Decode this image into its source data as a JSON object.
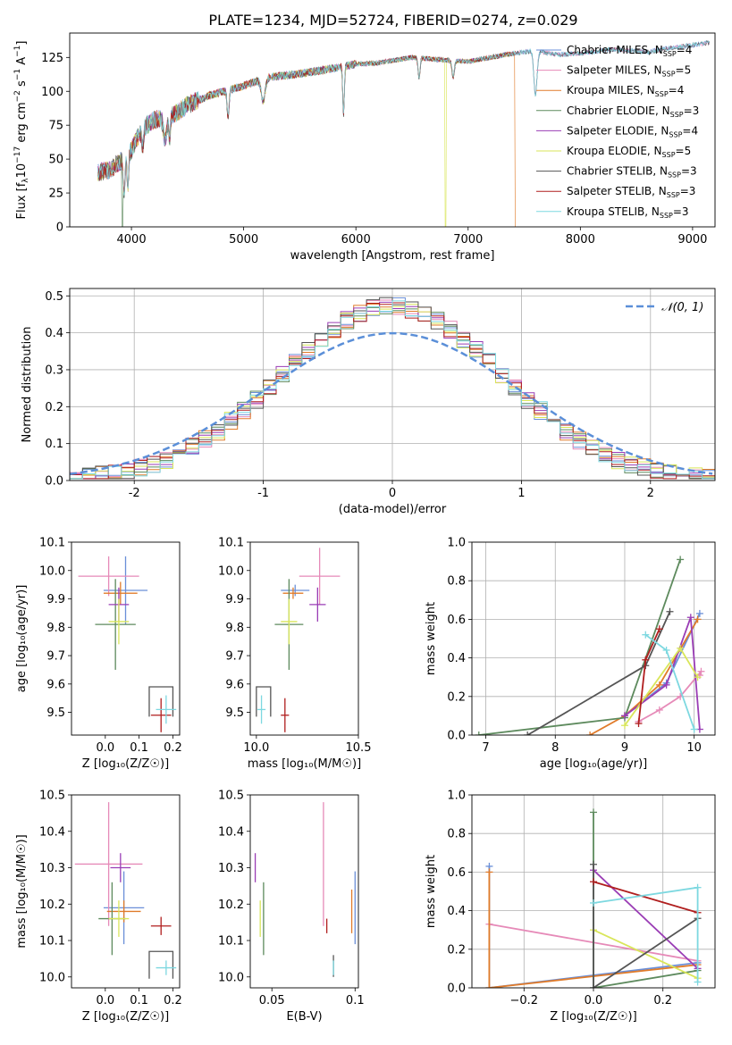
{
  "figure_title": "PLATE=1234, MJD=52724, FIBERID=0274, z=0.029",
  "colors": {
    "blue": "#6a8fd8",
    "pink": "#e68ab8",
    "orange": "#e07b2a",
    "green": "#5d8a5d",
    "purple": "#9a3db5",
    "yellow": "#d9e65a",
    "gray": "#555555",
    "red": "#b01e1e",
    "cyan": "#7dd8e0"
  },
  "legend_series": [
    {
      "name": "Chabrier MILES",
      "n": "4",
      "color": "blue"
    },
    {
      "name": "Salpeter MILES",
      "n": "5",
      "color": "pink"
    },
    {
      "name": "Kroupa MILES",
      "n": "4",
      "color": "orange"
    },
    {
      "name": "Chabrier ELODIE",
      "n": "3",
      "color": "green"
    },
    {
      "name": "Salpeter ELODIE",
      "n": "4",
      "color": "purple"
    },
    {
      "name": "Kroupa ELODIE",
      "n": "5",
      "color": "yellow"
    },
    {
      "name": "Chabrier STELIB",
      "n": "3",
      "color": "gray"
    },
    {
      "name": "Salpeter STELIB",
      "n": "3",
      "color": "red"
    },
    {
      "name": "Kroupa STELIB",
      "n": "3",
      "color": "cyan"
    }
  ],
  "chart_data": [
    {
      "id": "spectrum",
      "type": "line",
      "xlabel": "wavelength [Angstrom, rest frame]",
      "ylabel": "Flux [f_λ10^-17 erg cm^-2 s^-1 A^-1]",
      "xlim": [
        3450,
        9200
      ],
      "ylim": [
        0,
        143
      ],
      "xticks": [
        4000,
        5000,
        6000,
        7000,
        8000,
        9000
      ],
      "yticks": [
        0,
        25,
        50,
        75,
        100,
        125
      ],
      "grid": false,
      "legend": "top-right",
      "continuum": {
        "x": [
          3700,
          3800,
          3900,
          4000,
          4100,
          4200,
          4300,
          4400,
          4500,
          4700,
          5000,
          5200,
          5500,
          5800,
          6000,
          6200,
          6500,
          6800,
          7000,
          7200,
          7400,
          7600,
          7800,
          8000,
          8300,
          8600,
          8800,
          9000,
          9150
        ],
        "y": [
          40,
          42,
          48,
          57,
          73,
          79,
          80,
          84,
          90,
          97,
          104,
          110,
          113,
          117,
          120,
          121,
          125,
          123,
          122,
          125,
          128,
          130,
          127,
          128,
          131,
          129,
          132,
          134,
          136
        ]
      },
      "dropouts": [
        {
          "series": "green",
          "x": 3920
        },
        {
          "series": "yellow",
          "x": 6800
        },
        {
          "series": "orange",
          "x": 7420
        }
      ]
    },
    {
      "id": "residuals",
      "type": "histogram",
      "xlabel": "(data-model)/error",
      "ylabel": "Normed distribution",
      "xlim": [
        -2.5,
        2.5
      ],
      "ylim": [
        0,
        0.52
      ],
      "xticks": [
        -2,
        -1,
        0,
        1,
        2
      ],
      "yticks": [
        0.0,
        0.1,
        0.2,
        0.3,
        0.4,
        0.5
      ],
      "grid": true,
      "legend": "top-right",
      "reference": {
        "label": "𝒩(0, 1)",
        "mean": 0,
        "sigma": 1,
        "color": "#5b8fd8"
      },
      "bin_width": 0.1
    },
    {
      "id": "age_vs_Z",
      "type": "scatter",
      "xlabel": "Z [log₁₀(Z/Z☉)]",
      "ylabel": "age  [log₁₀(age/yr)]",
      "xlim": [
        -0.1,
        0.22
      ],
      "ylim": [
        9.42,
        10.1
      ],
      "xticks": [
        0.0,
        0.1,
        0.2
      ],
      "yticks": [
        9.5,
        9.6,
        9.7,
        9.8,
        9.9,
        10.0,
        10.1
      ],
      "grid": false,
      "points": [
        {
          "series": "blue",
          "x": 0.06,
          "y": 9.93,
          "xerr": 0.065,
          "yerr": 0.12
        },
        {
          "series": "pink",
          "x": 0.01,
          "y": 9.98,
          "xerr": 0.09,
          "yerr": 0.07
        },
        {
          "series": "orange",
          "x": 0.045,
          "y": 9.92,
          "xerr": 0.05,
          "yerr": 0.04
        },
        {
          "series": "green",
          "x": 0.03,
          "y": 9.81,
          "xerr": 0.06,
          "yerr": 0.16
        },
        {
          "series": "purple",
          "x": 0.04,
          "y": 9.88,
          "xerr": 0.03,
          "yerr": 0.06
        },
        {
          "series": "yellow",
          "x": 0.04,
          "y": 9.82,
          "xerr": 0.03,
          "yerr": 0.08
        },
        {
          "series": "gray",
          "x": 0.13,
          "y": 9.59,
          "xerr": 0.0,
          "yerr": 0.0,
          "box": {
            "x2": 0.2,
            "y2": 9.485
          }
        },
        {
          "series": "red",
          "x": 0.165,
          "y": 9.49,
          "xerr": 0.03,
          "yerr": 0.06
        },
        {
          "series": "cyan",
          "x": 0.18,
          "y": 9.51,
          "xerr": 0.03,
          "yerr": 0.05
        }
      ]
    },
    {
      "id": "age_vs_mass",
      "type": "scatter",
      "xlabel": "mass [log₁₀(M/M☉)]",
      "ylabel": "",
      "xlim": [
        9.97,
        10.5
      ],
      "ylim": [
        9.42,
        10.1
      ],
      "xticks": [
        10.0,
        10.5
      ],
      "xtick_labels": [
        "10.0",
        "10.5"
      ],
      "yticks": [
        9.5,
        9.6,
        9.7,
        9.8,
        9.9,
        10.0,
        10.1
      ],
      "grid": false,
      "points": [
        {
          "series": "blue",
          "x": 10.19,
          "y": 9.93,
          "xerr": 0.07,
          "yerr": 0.02
        },
        {
          "series": "pink",
          "x": 10.31,
          "y": 9.98,
          "xerr": 0.1,
          "yerr": 0.1
        },
        {
          "series": "orange",
          "x": 10.18,
          "y": 9.92,
          "xerr": 0.05,
          "yerr": 0.02
        },
        {
          "series": "green",
          "x": 10.16,
          "y": 9.81,
          "xerr": 0.07,
          "yerr": 0.16
        },
        {
          "series": "purple",
          "x": 10.3,
          "y": 9.88,
          "xerr": 0.04,
          "yerr": 0.06
        },
        {
          "series": "yellow",
          "x": 10.16,
          "y": 9.82,
          "xerr": 0.04,
          "yerr": 0.08
        },
        {
          "series": "gray",
          "x": 10.0,
          "y": 9.59,
          "xerr": 0.0,
          "yerr": 0.0,
          "box": {
            "x2": 10.07,
            "y2": 9.485
          }
        },
        {
          "series": "red",
          "x": 10.14,
          "y": 9.49,
          "xerr": 0.02,
          "yerr": 0.06
        },
        {
          "series": "cyan",
          "x": 10.025,
          "y": 9.51,
          "xerr": 0.02,
          "yerr": 0.05
        }
      ]
    },
    {
      "id": "weight_vs_age",
      "type": "line",
      "xlabel": "age  [log₁₀(age/yr)]",
      "ylabel": "mass weight",
      "xlim": [
        6.8,
        10.3
      ],
      "ylim": [
        0,
        1.0
      ],
      "xticks": [
        7,
        8,
        9,
        10
      ],
      "yticks": [
        0.0,
        0.2,
        0.4,
        0.6,
        0.8,
        1.0
      ],
      "grid": true,
      "series": [
        {
          "series": "blue",
          "points": [
            [
              9.0,
              0.1
            ],
            [
              9.6,
              0.27
            ],
            [
              10.08,
              0.63
            ]
          ]
        },
        {
          "series": "pink",
          "points": [
            [
              9.2,
              0.07
            ],
            [
              9.5,
              0.13
            ],
            [
              9.8,
              0.2
            ],
            [
              10.1,
              0.33
            ],
            [
              10.08,
              0.31
            ]
          ]
        },
        {
          "series": "orange",
          "points": [
            [
              8.5,
              0.0
            ],
            [
              9.0,
              0.1
            ],
            [
              9.5,
              0.26
            ],
            [
              10.05,
              0.6
            ]
          ]
        },
        {
          "series": "green",
          "points": [
            [
              6.9,
              0.0
            ],
            [
              9.0,
              0.09
            ],
            [
              9.8,
              0.91
            ]
          ]
        },
        {
          "series": "purple",
          "points": [
            [
              9.0,
              0.1
            ],
            [
              9.6,
              0.26
            ],
            [
              9.95,
              0.61
            ],
            [
              10.08,
              0.03
            ]
          ]
        },
        {
          "series": "yellow",
          "points": [
            [
              9.0,
              0.05
            ],
            [
              9.8,
              0.45
            ],
            [
              10.05,
              0.3
            ]
          ]
        },
        {
          "series": "gray",
          "points": [
            [
              7.6,
              0.0
            ],
            [
              9.3,
              0.36
            ],
            [
              9.65,
              0.64
            ]
          ]
        },
        {
          "series": "red",
          "points": [
            [
              9.2,
              0.06
            ],
            [
              9.3,
              0.39
            ],
            [
              9.5,
              0.55
            ]
          ]
        },
        {
          "series": "cyan",
          "points": [
            [
              9.3,
              0.52
            ],
            [
              9.6,
              0.44
            ],
            [
              10.0,
              0.03
            ]
          ]
        }
      ]
    },
    {
      "id": "mass_vs_Z",
      "type": "scatter",
      "xlabel": "Z [log₁₀(Z/Z☉)]",
      "ylabel": "mass [log₁₀(M/M☉)]",
      "xlim": [
        -0.1,
        0.22
      ],
      "ylim": [
        9.97,
        10.5
      ],
      "xticks": [
        0.0,
        0.1,
        0.2
      ],
      "yticks": [
        10.0,
        10.1,
        10.2,
        10.3,
        10.4,
        10.5
      ],
      "grid": false,
      "points": [
        {
          "series": "blue",
          "x": 0.055,
          "y": 10.19,
          "xerr": 0.06,
          "yerr": 0.1
        },
        {
          "series": "pink",
          "x": 0.01,
          "y": 10.31,
          "xerr": 0.1,
          "yerr": 0.17
        },
        {
          "series": "orange",
          "x": 0.055,
          "y": 10.18,
          "xerr": 0.05,
          "yerr": 0.03
        },
        {
          "series": "green",
          "x": 0.02,
          "y": 10.16,
          "xerr": 0.04,
          "yerr": 0.1
        },
        {
          "series": "purple",
          "x": 0.045,
          "y": 10.3,
          "xerr": 0.03,
          "yerr": 0.04
        },
        {
          "series": "yellow",
          "x": 0.04,
          "y": 10.16,
          "xerr": 0.03,
          "yerr": 0.05
        },
        {
          "series": "gray",
          "x": 0.13,
          "y": 10.07,
          "xerr": 0.0,
          "yerr": 0.0,
          "box": {
            "x2": 0.2,
            "y2": 9.995
          }
        },
        {
          "series": "red",
          "x": 0.165,
          "y": 10.14,
          "xerr": 0.03,
          "yerr": 0.025
        },
        {
          "series": "cyan",
          "x": 0.18,
          "y": 10.025,
          "xerr": 0.03,
          "yerr": 0.02
        }
      ]
    },
    {
      "id": "mass_vs_ebv",
      "type": "scatter",
      "xlabel": "E(B-V)",
      "ylabel": "",
      "xlim": [
        0.037,
        0.102
      ],
      "ylim": [
        9.97,
        10.5
      ],
      "xticks": [
        0.05,
        0.1
      ],
      "yticks": [
        10.0,
        10.1,
        10.2,
        10.3,
        10.4,
        10.5
      ],
      "grid": false,
      "points": [
        {
          "series": "blue",
          "x": 0.1,
          "y": 10.19,
          "xerr": 0.0,
          "yerr": 0.1
        },
        {
          "series": "pink",
          "x": 0.081,
          "y": 10.31,
          "xerr": 0.0,
          "yerr": 0.17
        },
        {
          "series": "orange",
          "x": 0.098,
          "y": 10.18,
          "xerr": 0.0,
          "yerr": 0.06
        },
        {
          "series": "green",
          "x": 0.045,
          "y": 10.16,
          "xerr": 0.0,
          "yerr": 0.1
        },
        {
          "series": "purple",
          "x": 0.04,
          "y": 10.3,
          "xerr": 0.0,
          "yerr": 0.04
        },
        {
          "series": "yellow",
          "x": 0.043,
          "y": 10.16,
          "xerr": 0.0,
          "yerr": 0.05
        },
        {
          "series": "gray",
          "x": 0.087,
          "y": 10.03,
          "xerr": 0.0,
          "yerr": 0.03
        },
        {
          "series": "red",
          "x": 0.083,
          "y": 10.14,
          "xerr": 0.0,
          "yerr": 0.02
        },
        {
          "series": "cyan",
          "x": 0.087,
          "y": 10.025,
          "xerr": 0.0,
          "yerr": 0.02
        }
      ]
    },
    {
      "id": "weight_vs_Z",
      "type": "line",
      "xlabel": "Z [log₁₀(Z/Z☉)]",
      "ylabel": "mass weight",
      "xlim": [
        -0.35,
        0.35
      ],
      "ylim": [
        0,
        1.0
      ],
      "xticks": [
        -0.2,
        0.0,
        0.2
      ],
      "yticks": [
        0.0,
        0.2,
        0.4,
        0.6,
        0.8,
        1.0
      ],
      "grid": true,
      "series": [
        {
          "series": "blue",
          "points": [
            [
              -0.3,
              0.63
            ],
            [
              -0.3,
              0.0
            ],
            [
              0.3,
              0.13
            ]
          ]
        },
        {
          "series": "pink",
          "points": [
            [
              -0.3,
              0.33
            ],
            [
              0.3,
              0.14
            ]
          ]
        },
        {
          "series": "orange",
          "points": [
            [
              -0.3,
              0.6
            ],
            [
              -0.3,
              0.0
            ],
            [
              0.3,
              0.12
            ]
          ]
        },
        {
          "series": "green",
          "points": [
            [
              0.0,
              0.91
            ],
            [
              0.0,
              0.0
            ],
            [
              0.3,
              0.09
            ]
          ]
        },
        {
          "series": "purple",
          "points": [
            [
              0.0,
              0.61
            ],
            [
              0.3,
              0.1
            ]
          ]
        },
        {
          "series": "yellow",
          "points": [
            [
              0.0,
              0.3
            ],
            [
              0.3,
              0.05
            ]
          ]
        },
        {
          "series": "gray",
          "points": [
            [
              0.0,
              0.64
            ],
            [
              0.0,
              0.0
            ],
            [
              0.3,
              0.36
            ]
          ]
        },
        {
          "series": "red",
          "points": [
            [
              0.0,
              0.55
            ],
            [
              0.3,
              0.39
            ]
          ]
        },
        {
          "series": "cyan",
          "points": [
            [
              0.0,
              0.44
            ],
            [
              0.3,
              0.52
            ],
            [
              0.3,
              0.03
            ]
          ]
        }
      ]
    }
  ]
}
